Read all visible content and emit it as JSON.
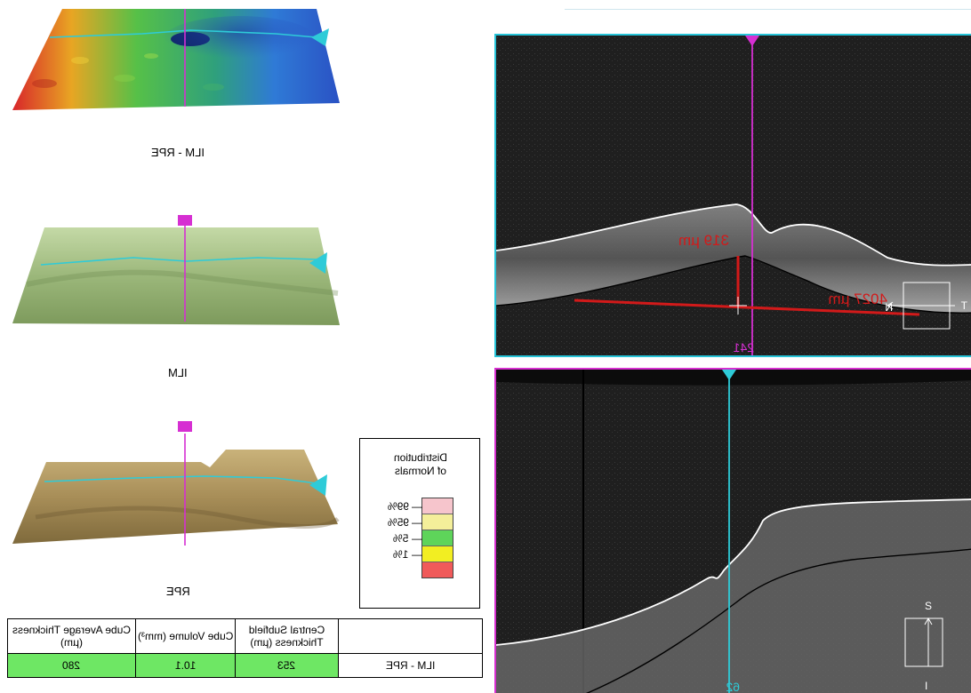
{
  "surfaces": [
    {
      "label": "ILM - RPE"
    },
    {
      "label": "ILM"
    },
    {
      "label": "RPE"
    }
  ],
  "legend": {
    "title_line1": "Distribution",
    "title_line2": "of Normals",
    "ticks": [
      "99%",
      "95%",
      "5%",
      "1%"
    ],
    "colors": [
      "#f6c5cc",
      "#f4ef9a",
      "#5ed45a",
      "#f2ee22",
      "#f05a5a"
    ]
  },
  "table": {
    "headers": [
      "Central Subfield Thickness (µm)",
      "Cube Volume (mm³)",
      "Cube Average Thickness (µm)"
    ],
    "row_label": "ILM - RPE",
    "values": [
      "253",
      "10.1",
      "280"
    ]
  },
  "bscan_top": {
    "slice_number": "241",
    "measure_vertical": "319 µm",
    "measure_horizontal": "4027 µm",
    "orient_left": "N",
    "orient_right": "T"
  },
  "bscan_bottom": {
    "slice_number": "62",
    "orient_top": "S",
    "orient_bottom": "I"
  },
  "colors": {
    "cyan_marker": "#2ecbd8",
    "magenta_marker": "#d62fd2",
    "measure_red": "#d21a1a"
  }
}
